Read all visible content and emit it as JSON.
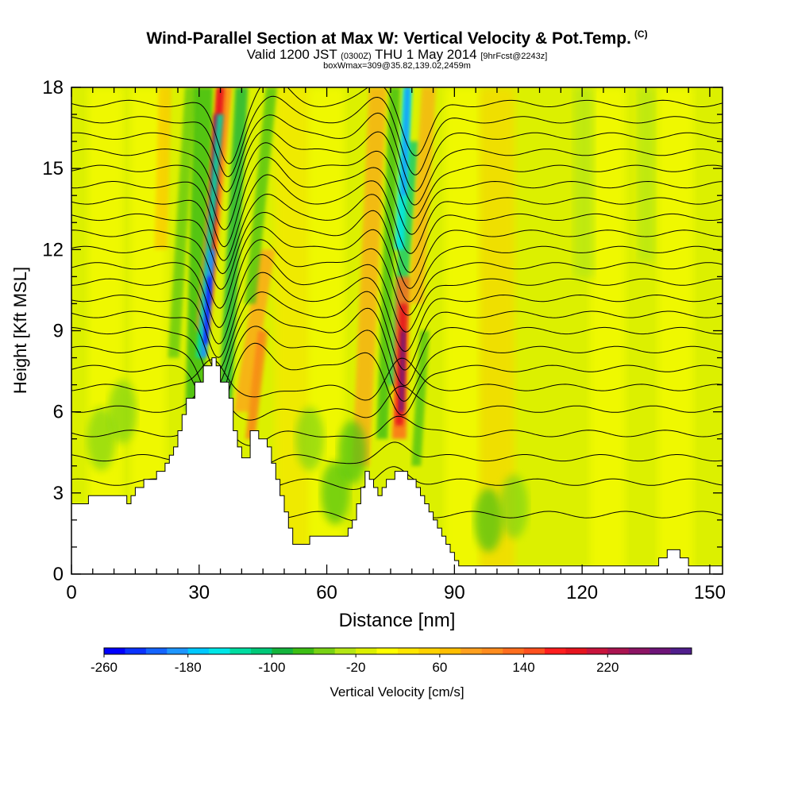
{
  "title": {
    "main": "Wind-Parallel Section at Max W: Vertical Velocity & Pot.Temp.",
    "copyright_mark": "(C)",
    "valid_prefix": "Valid 1200 JST",
    "valid_utc": "(0300Z)",
    "valid_date": "THU 1 May 2014",
    "forecast_info": "[9hrFcst@2243z]",
    "box_info": "boxWmax=309@35.82,139.02,2459m"
  },
  "chart_data": {
    "type": "heatmap",
    "xlabel": "Distance [nm]",
    "ylabel": "Height [Kft MSL]",
    "xlim": [
      0,
      153
    ],
    "ylim": [
      0,
      18
    ],
    "x_ticks": [
      0,
      30,
      60,
      90,
      120,
      150
    ],
    "y_ticks": [
      0,
      3,
      6,
      9,
      12,
      15,
      18
    ],
    "minor_x_step": 5,
    "minor_y_step": 1,
    "colorbar": {
      "label": "Vertical Velocity [cm/s]",
      "tick_labels": [
        "-260",
        "-180",
        "-100",
        "-20",
        "60",
        "140",
        "220"
      ],
      "colors": [
        "#0000ff",
        "#0a32ff",
        "#1464ff",
        "#1e96ff",
        "#00c8ff",
        "#00e6e6",
        "#00dca0",
        "#00c878",
        "#14b43c",
        "#3cbe14",
        "#78d214",
        "#b4e614",
        "#dcf000",
        "#ffff00",
        "#ffe600",
        "#ffd200",
        "#ffbe00",
        "#ffa01e",
        "#ff8c1e",
        "#ff6e1e",
        "#ff501e",
        "#ff1e1e",
        "#e6141e",
        "#c8143c",
        "#aa1450",
        "#8c1464",
        "#6e1478",
        "#501e8c"
      ]
    },
    "background_band_color": "#dcf000",
    "features": [
      {
        "type": "updraft",
        "x_center": 34,
        "y_bottom": 9,
        "y_top": 18,
        "w_max": 260
      },
      {
        "type": "downdraft",
        "x_center": 32,
        "y_bottom": 8,
        "y_top": 12,
        "w_min": -260
      },
      {
        "type": "updraft",
        "x_center": 78,
        "y_bottom": 5,
        "y_top": 11,
        "w_max": 260
      },
      {
        "type": "downdraft",
        "x_center": 79,
        "y_bottom": 12,
        "y_top": 18,
        "w_min": -200
      },
      {
        "type": "updraft",
        "x_center": 43,
        "y_bottom": 5,
        "y_top": 9,
        "w_max": 120
      },
      {
        "type": "updraft",
        "x_center": 70,
        "y_bottom": 12,
        "y_top": 18,
        "w_max": 100
      }
    ],
    "terrain_height_kft": [
      [
        0,
        2.6
      ],
      [
        4,
        2.6
      ],
      [
        4,
        2.9
      ],
      [
        13,
        2.9
      ],
      [
        13,
        2.6
      ],
      [
        14,
        2.6
      ],
      [
        14,
        2.9
      ],
      [
        15,
        2.9
      ],
      [
        15,
        3.2
      ],
      [
        17,
        3.2
      ],
      [
        17,
        3.5
      ],
      [
        20,
        3.5
      ],
      [
        20,
        3.8
      ],
      [
        22,
        3.8
      ],
      [
        22,
        4.1
      ],
      [
        23,
        4.1
      ],
      [
        23,
        4.4
      ],
      [
        24,
        4.4
      ],
      [
        24,
        4.7
      ],
      [
        25,
        4.7
      ],
      [
        25,
        5.3
      ],
      [
        26,
        5.3
      ],
      [
        26,
        5.9
      ],
      [
        27,
        5.9
      ],
      [
        27,
        6.5
      ],
      [
        29,
        6.5
      ],
      [
        29,
        7.1
      ],
      [
        31,
        7.1
      ],
      [
        31,
        7.7
      ],
      [
        33,
        7.7
      ],
      [
        33,
        8.0
      ],
      [
        34,
        8.0
      ],
      [
        34,
        7.7
      ],
      [
        35,
        7.7
      ],
      [
        35,
        7.1
      ],
      [
        37,
        7.1
      ],
      [
        37,
        6.5
      ],
      [
        38,
        6.5
      ],
      [
        38,
        5.3
      ],
      [
        39,
        5.3
      ],
      [
        39,
        4.7
      ],
      [
        40,
        4.7
      ],
      [
        40,
        4.3
      ],
      [
        42,
        4.3
      ],
      [
        42,
        5.3
      ],
      [
        44,
        5.3
      ],
      [
        44,
        5.0
      ],
      [
        46,
        5.0
      ],
      [
        46,
        4.7
      ],
      [
        47,
        4.7
      ],
      [
        47,
        4.1
      ],
      [
        48,
        4.1
      ],
      [
        48,
        3.5
      ],
      [
        49,
        3.5
      ],
      [
        49,
        2.9
      ],
      [
        50,
        2.9
      ],
      [
        50,
        2.3
      ],
      [
        51,
        2.3
      ],
      [
        51,
        1.7
      ],
      [
        52,
        1.7
      ],
      [
        52,
        1.1
      ],
      [
        56,
        1.1
      ],
      [
        56,
        1.4
      ],
      [
        65,
        1.4
      ],
      [
        65,
        1.7
      ],
      [
        66,
        1.7
      ],
      [
        66,
        2.0
      ],
      [
        67,
        2.0
      ],
      [
        67,
        2.6
      ],
      [
        68,
        2.6
      ],
      [
        68,
        3.2
      ],
      [
        69,
        3.2
      ],
      [
        69,
        3.8
      ],
      [
        70,
        3.8
      ],
      [
        70,
        3.5
      ],
      [
        71,
        3.5
      ],
      [
        71,
        3.2
      ],
      [
        72,
        3.2
      ],
      [
        72,
        2.9
      ],
      [
        73,
        2.9
      ],
      [
        73,
        3.2
      ],
      [
        74,
        3.2
      ],
      [
        74,
        3.5
      ],
      [
        76,
        3.5
      ],
      [
        76,
        3.8
      ],
      [
        79,
        3.8
      ],
      [
        79,
        3.5
      ],
      [
        81,
        3.5
      ],
      [
        81,
        3.2
      ],
      [
        82,
        3.2
      ],
      [
        82,
        2.9
      ],
      [
        83,
        2.9
      ],
      [
        83,
        2.6
      ],
      [
        84,
        2.6
      ],
      [
        84,
        2.3
      ],
      [
        85,
        2.3
      ],
      [
        85,
        2.0
      ],
      [
        86,
        2.0
      ],
      [
        86,
        1.7
      ],
      [
        87,
        1.7
      ],
      [
        87,
        1.4
      ],
      [
        88,
        1.4
      ],
      [
        88,
        1.1
      ],
      [
        89,
        1.1
      ],
      [
        89,
        0.8
      ],
      [
        90,
        0.8
      ],
      [
        90,
        0.5
      ],
      [
        91,
        0.5
      ],
      [
        91,
        0.3
      ],
      [
        138,
        0.3
      ],
      [
        138,
        0.6
      ],
      [
        140,
        0.6
      ],
      [
        140,
        0.9
      ],
      [
        143,
        0.9
      ],
      [
        143,
        0.6
      ],
      [
        145,
        0.6
      ],
      [
        145,
        0.3
      ],
      [
        153,
        0.3
      ]
    ],
    "contour_base_levels_kft": [
      2.2,
      3.4,
      4.3,
      5.2,
      6.1,
      6.9,
      7.6,
      8.3,
      9.0,
      9.6,
      10.2,
      10.8,
      11.4,
      12.0,
      12.6,
      13.2,
      13.8,
      14.4,
      15.0,
      15.6,
      16.2,
      16.8,
      17.4
    ]
  }
}
